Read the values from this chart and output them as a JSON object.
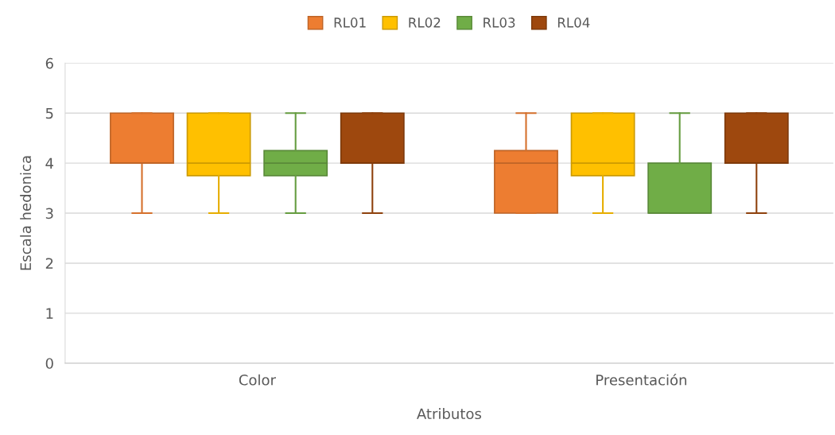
{
  "chart_data": {
    "type": "box",
    "xlabel": "Atributos",
    "ylabel": "Escala hedonica",
    "categories": [
      "Color",
      "Presentación"
    ],
    "ylim": [
      0,
      6
    ],
    "yticks": [
      0,
      1,
      2,
      3,
      4,
      5,
      6
    ],
    "grid": "y",
    "legend": "top",
    "series": [
      {
        "name": "RL01",
        "color": "#ed7d31",
        "boxes": [
          {
            "low": 3,
            "q1": 4,
            "median": 4,
            "q3": 5,
            "high": 5
          },
          {
            "low": 3,
            "q1": 3,
            "median": 4,
            "q3": 4.25,
            "high": 5
          }
        ]
      },
      {
        "name": "RL02",
        "color": "#ffc000",
        "boxes": [
          {
            "low": 3,
            "q1": 3.75,
            "median": 4,
            "q3": 5,
            "high": 5
          },
          {
            "low": 3,
            "q1": 3.75,
            "median": 4,
            "q3": 5,
            "high": 5
          }
        ]
      },
      {
        "name": "RL03",
        "color": "#70ad47",
        "boxes": [
          {
            "low": 3,
            "q1": 3.75,
            "median": 4,
            "q3": 4.25,
            "high": 5
          },
          {
            "low": 3,
            "q1": 3,
            "median": 3,
            "q3": 4,
            "high": 5
          }
        ]
      },
      {
        "name": "RL04",
        "color": "#9e480e",
        "boxes": [
          {
            "low": 3,
            "q1": 4,
            "median": 4,
            "q3": 5,
            "high": 5
          },
          {
            "low": 3,
            "q1": 4,
            "median": 4,
            "q3": 5,
            "high": 5
          }
        ]
      }
    ]
  }
}
